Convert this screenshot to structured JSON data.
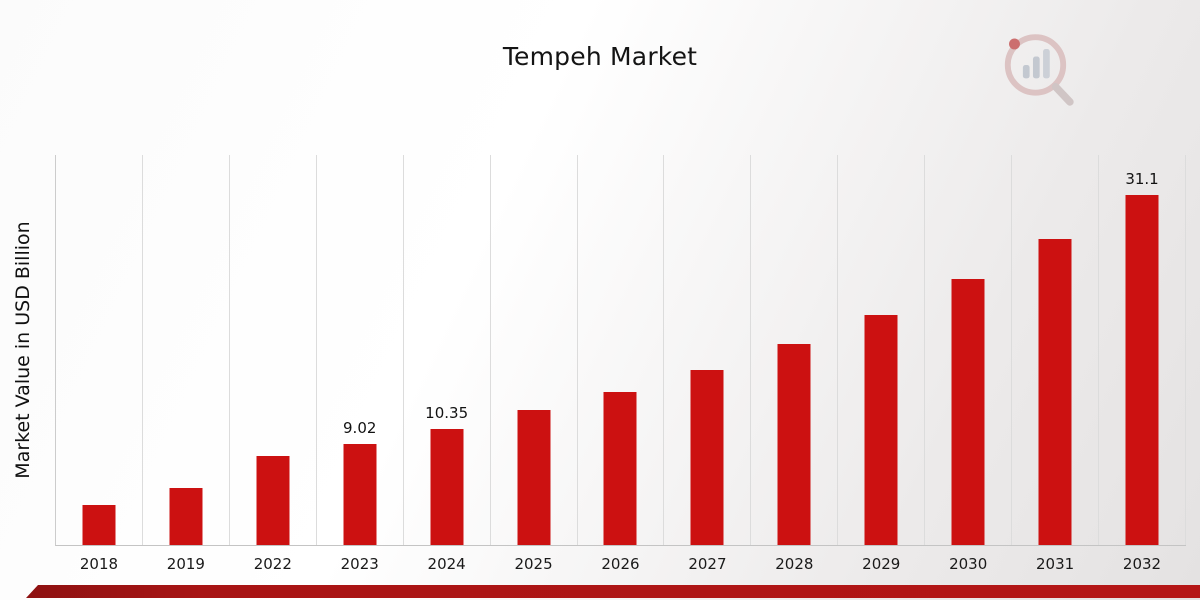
{
  "title": "Tempeh Market",
  "ylabel": "Market Value in USD Billion",
  "logo": {
    "name": "market-research-brand-logo"
  },
  "colors": {
    "bar": "#cc1111",
    "footer_band_dark": "#8e1212",
    "footer_band_light": "#b51616",
    "gridline": "#dcdcdc"
  },
  "chart_data": {
    "type": "bar",
    "title": "Tempeh Market",
    "xlabel": "",
    "ylabel": "Market Value in USD Billion",
    "categories": [
      "2018",
      "2019",
      "2022",
      "2023",
      "2024",
      "2025",
      "2026",
      "2027",
      "2028",
      "2029",
      "2030",
      "2031",
      "2032"
    ],
    "values": [
      3.6,
      5.1,
      7.9,
      9.02,
      10.35,
      12.0,
      13.6,
      15.6,
      17.9,
      20.5,
      23.7,
      27.2,
      31.1
    ],
    "data_labels": {
      "2023": "9.02",
      "2024": "10.35",
      "2032": "31.1"
    },
    "ylim": [
      0,
      34.7
    ],
    "grid": "vertical",
    "legend": "none",
    "bar_color": "#cc1111"
  }
}
